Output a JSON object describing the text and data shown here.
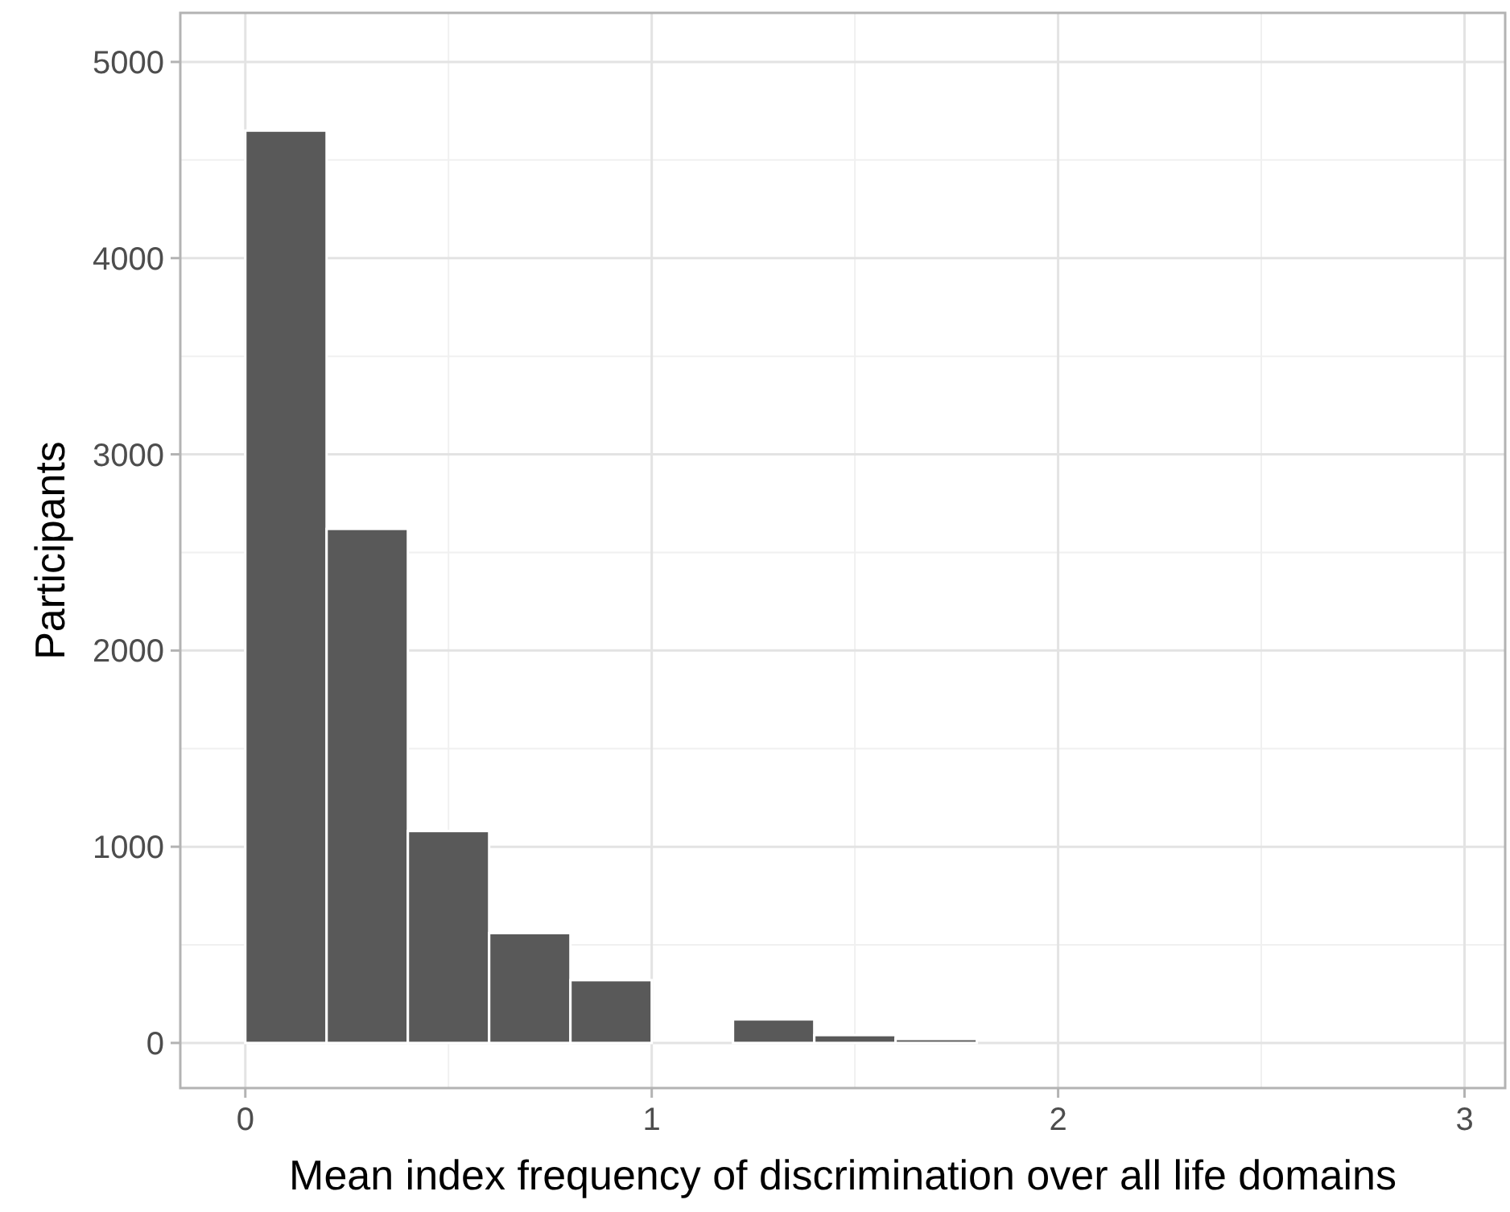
{
  "chart_data": {
    "type": "histogram",
    "xlabel": "Mean index frequency of discrimination over all life domains",
    "ylabel": "Participants",
    "bins": [
      0,
      0.2,
      0.4,
      0.6,
      0.8,
      1.0,
      1.2,
      1.4,
      1.6,
      1.8,
      2.0,
      2.2,
      2.4,
      2.6,
      2.8,
      3.0
    ],
    "values": [
      4650,
      2620,
      1080,
      560,
      320,
      0,
      120,
      40,
      20,
      0,
      0,
      0,
      0,
      0,
      0
    ],
    "color": "#595959",
    "xlim": [
      -0.16,
      3.1
    ],
    "ylim": [
      -230,
      5250
    ],
    "xticks": [
      0,
      1,
      2,
      3
    ],
    "yticks": [
      0,
      1000,
      2000,
      3000,
      4000,
      5000
    ],
    "grid": true
  }
}
